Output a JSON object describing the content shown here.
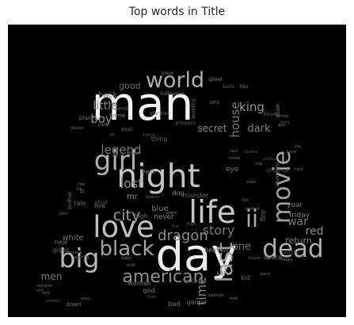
{
  "chart_data": {
    "type": "wordcloud",
    "title": "Top words in Title",
    "background": "#000000",
    "text_color_range": [
      "#555555",
      "#f2f2f2"
    ],
    "words": [
      {
        "text": "man",
        "weight": 100
      },
      {
        "text": "day",
        "weight": 96
      },
      {
        "text": "night",
        "weight": 72
      },
      {
        "text": "life",
        "weight": 68
      },
      {
        "text": "love",
        "weight": 66
      },
      {
        "text": "girl",
        "weight": 60
      },
      {
        "text": "big",
        "weight": 58
      },
      {
        "text": "dead",
        "weight": 56
      },
      {
        "text": "movie",
        "weight": 54
      },
      {
        "text": "ii",
        "weight": 52
      },
      {
        "text": "last",
        "weight": 50
      },
      {
        "text": "world",
        "weight": 48
      },
      {
        "text": "black",
        "weight": 46
      },
      {
        "text": "american",
        "weight": 40
      },
      {
        "text": "city",
        "weight": 34
      },
      {
        "text": "dragon",
        "weight": 32
      },
      {
        "text": "story",
        "weight": 30
      },
      {
        "text": "lost",
        "weight": 30
      },
      {
        "text": "time",
        "weight": 29
      },
      {
        "text": "house",
        "weight": 28
      },
      {
        "text": "boy",
        "weight": 28
      },
      {
        "text": "legend",
        "weight": 27
      },
      {
        "text": "king",
        "weight": 27
      },
      {
        "text": "little",
        "weight": 26
      },
      {
        "text": "war",
        "weight": 26
      },
      {
        "text": "red",
        "weight": 25
      },
      {
        "text": "dark",
        "weight": 24
      },
      {
        "text": "one",
        "weight": 24
      },
      {
        "text": "secret",
        "weight": 22
      },
      {
        "text": "men",
        "weight": 22
      },
      {
        "text": "good",
        "weight": 20
      },
      {
        "text": "return",
        "weight": 20
      },
      {
        "text": "white",
        "weight": 19
      },
      {
        "text": "mr",
        "weight": 19
      },
      {
        "text": "blue",
        "weight": 18
      },
      {
        "text": "back",
        "weight": 18
      },
      {
        "text": "never",
        "weight": 17
      },
      {
        "text": "year",
        "weight": 17
      },
      {
        "text": "fire",
        "weight": 17
      },
      {
        "text": "friday",
        "weight": 16
      },
      {
        "text": "eye",
        "weight": 16
      },
      {
        "text": "monster",
        "weight": 15
      },
      {
        "text": "woman",
        "weight": 15
      },
      {
        "text": "high",
        "weight": 15
      },
      {
        "text": "heaven",
        "weight": 15
      },
      {
        "text": "kill",
        "weight": 15
      },
      {
        "text": "game",
        "weight": 15
      },
      {
        "text": "bad",
        "weight": 15
      },
      {
        "text": "kid",
        "weight": 14
      },
      {
        "text": "escape",
        "weight": 14
      },
      {
        "text": "space",
        "weight": 14
      },
      {
        "text": "new",
        "weight": 14
      },
      {
        "text": "great",
        "weight": 14
      },
      {
        "text": "live",
        "weight": 14
      },
      {
        "text": "tale",
        "weight": 14
      },
      {
        "text": "dog",
        "weight": 14
      },
      {
        "text": "best",
        "weight": 14
      },
      {
        "text": "thing",
        "weight": 14
      },
      {
        "text": "god",
        "weight": 14
      },
      {
        "text": "dawn",
        "weight": 13
      },
      {
        "text": "land",
        "weight": 13
      },
      {
        "text": "home",
        "weight": 13
      },
      {
        "text": "planet",
        "weight": 13
      },
      {
        "text": "earth",
        "weight": 13
      },
      {
        "text": "iii",
        "weight": 13
      },
      {
        "text": "sea",
        "weight": 13
      },
      {
        "text": "street",
        "weight": 12
      },
      {
        "text": "two",
        "weight": 12
      },
      {
        "text": "blood",
        "weight": 12
      },
      {
        "text": "death",
        "weight": 12
      },
      {
        "text": "adventure",
        "weight": 12
      },
      {
        "text": "christmas",
        "weight": 11
      },
      {
        "text": "star trek",
        "weight": 11
      },
      {
        "text": "devil",
        "weight": 11
      },
      {
        "text": "ghost",
        "weight": 11
      },
      {
        "text": "brother",
        "weight": 11
      },
      {
        "text": "part",
        "weight": 11
      },
      {
        "text": "halloween",
        "weight": 11
      },
      {
        "text": "wedding",
        "weight": 11
      },
      {
        "text": "princess",
        "weight": 11
      },
      {
        "text": "water",
        "weight": 10
      },
      {
        "text": "train",
        "weight": 10
      },
      {
        "text": "first",
        "weight": 10
      },
      {
        "text": "baby",
        "weight": 10
      },
      {
        "text": "walk",
        "weight": 10
      },
      {
        "text": "final",
        "weight": 10
      },
      {
        "text": "paris",
        "weight": 10
      },
      {
        "text": "future",
        "weight": 10
      },
      {
        "text": "guy",
        "weight": 10
      },
      {
        "text": "prince",
        "weight": 10
      },
      {
        "text": "battle",
        "weight": 10
      },
      {
        "text": "island",
        "weight": 10
      },
      {
        "text": "road",
        "weight": 10
      },
      {
        "text": "friend",
        "weight": 10
      },
      {
        "text": "moon",
        "weight": 9
      },
      {
        "text": "next",
        "weight": 9
      },
      {
        "text": "double",
        "weight": 9
      },
      {
        "text": "cop",
        "weight": 9
      },
      {
        "text": "hard",
        "weight": 9
      },
      {
        "text": "rock",
        "weight": 9
      },
      {
        "text": "beauty",
        "weight": 9
      },
      {
        "text": "dream",
        "weight": 9
      },
      {
        "text": "rise",
        "weight": 9
      },
      {
        "text": "shadow",
        "weight": 9
      },
      {
        "text": "wild",
        "weight": 9
      },
      {
        "text": "lord",
        "weight": 9
      },
      {
        "text": "allen",
        "weight": 9
      },
      {
        "text": "women",
        "weight": 9
      },
      {
        "text": "vampire",
        "weight": 9
      },
      {
        "text": "hell",
        "weight": 9
      },
      {
        "text": "perfect",
        "weight": 9
      },
      {
        "text": "batman",
        "weight": 9
      },
      {
        "text": "summer",
        "weight": 9
      },
      {
        "text": "happy",
        "weight": 9
      },
      {
        "text": "three",
        "weight": 9
      },
      {
        "text": "dirty",
        "weight": 9
      },
      {
        "text": "doctor",
        "weight": 9
      },
      {
        "text": "sky",
        "weight": 9
      },
      {
        "text": "school",
        "weight": 9
      },
      {
        "text": "john",
        "weight": 9
      },
      {
        "text": "die",
        "weight": 9
      },
      {
        "text": "vs",
        "weight": 9
      },
      {
        "text": "bride",
        "weight": 9
      }
    ]
  }
}
